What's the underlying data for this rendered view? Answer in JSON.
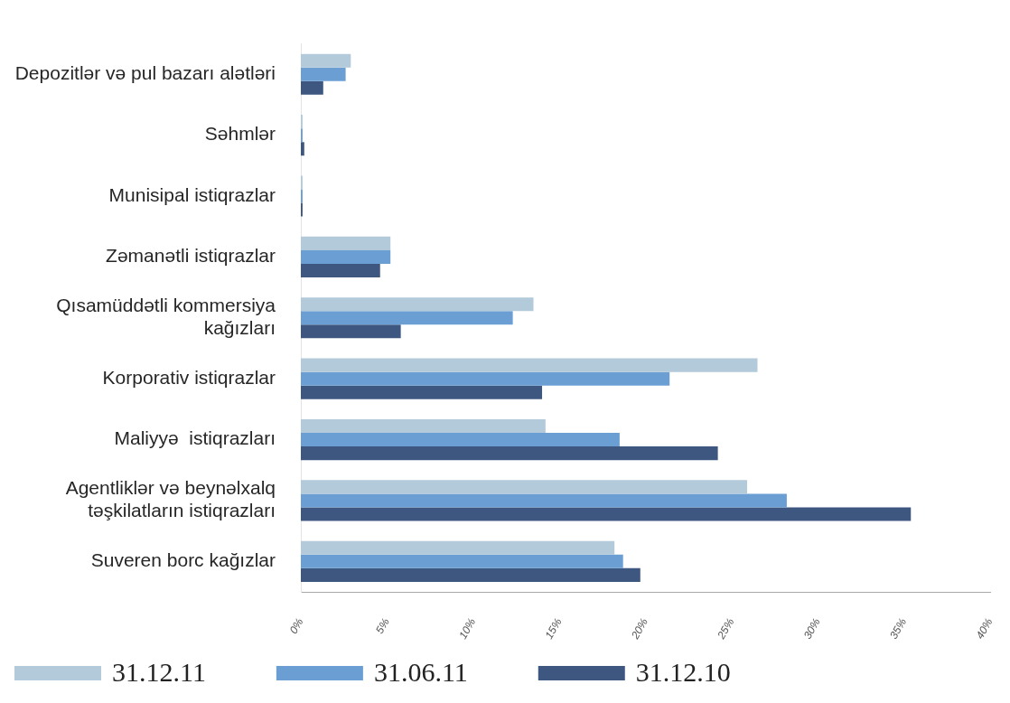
{
  "chart_data": {
    "type": "bar",
    "orientation": "horizontal",
    "categories": [
      "Depozitlər və pul bazarı alətləri",
      "Səhmlər",
      "Munisipal istiqrazlar",
      "Zəmanətli istiqrazlar",
      "Qısamüddətli kommersiya kağızları",
      "Korporativ istiqrazlar",
      "Maliyyə  istiqrazları",
      "Agentliklər və beynəlxalq təşkilatların istiqrazları",
      "Suveren borc kağızlar"
    ],
    "series": [
      {
        "name": "31.12.11",
        "color": "#b3cadb",
        "values": [
          2.9,
          0.1,
          0.1,
          5.2,
          13.5,
          26.5,
          14.2,
          25.9,
          18.2
        ]
      },
      {
        "name": "31.06.11",
        "color": "#6b9fd4",
        "values": [
          2.6,
          0.1,
          0.1,
          5.2,
          12.3,
          21.4,
          18.5,
          28.2,
          18.7
        ]
      },
      {
        "name": "31.12.10",
        "color": "#3e5780",
        "values": [
          1.3,
          0.2,
          0.1,
          4.6,
          5.8,
          14.0,
          24.2,
          35.4,
          19.7
        ]
      }
    ],
    "xlim": [
      0,
      40
    ],
    "xticks": [
      {
        "value": 0,
        "label": "0%"
      },
      {
        "value": 5,
        "label": "5%"
      },
      {
        "value": 10,
        "label": "10%"
      },
      {
        "value": 15,
        "label": "15%"
      },
      {
        "value": 20,
        "label": "20%"
      },
      {
        "value": 25,
        "label": "25%"
      },
      {
        "value": 30,
        "label": "30%"
      },
      {
        "value": 35,
        "label": "35%"
      },
      {
        "value": 40,
        "label": "40%"
      }
    ],
    "legend": "bottom"
  }
}
